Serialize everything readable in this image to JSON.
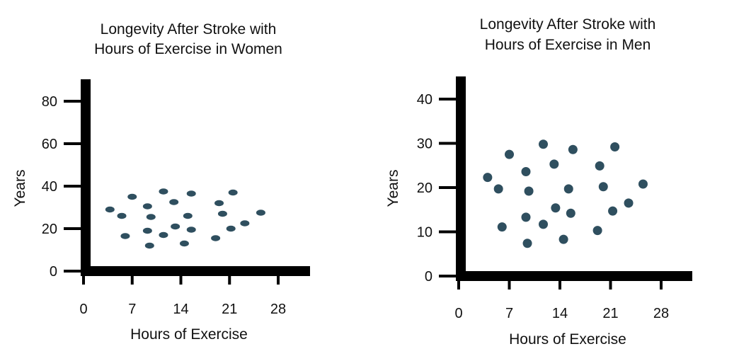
{
  "chart_data": [
    {
      "type": "scatter",
      "title_lines": [
        "Longevity After Stroke with",
        "Hours of Exercise in Women"
      ],
      "xlabel": "Hours of Exercise",
      "ylabel": "Years",
      "xlim": [
        0,
        32
      ],
      "ylim": [
        0,
        90
      ],
      "xticks": [
        0,
        7,
        14,
        21,
        28
      ],
      "yticks": [
        0,
        20,
        40,
        60,
        80
      ],
      "grid": false,
      "marker_color": "#2f4f5f",
      "marker_shape": "ellipse",
      "points": [
        {
          "x": 3.8,
          "y": 29
        },
        {
          "x": 5.5,
          "y": 26
        },
        {
          "x": 6.0,
          "y": 16.5
        },
        {
          "x": 7.0,
          "y": 35
        },
        {
          "x": 9.2,
          "y": 30.5
        },
        {
          "x": 9.2,
          "y": 19
        },
        {
          "x": 9.7,
          "y": 25.5
        },
        {
          "x": 9.5,
          "y": 12
        },
        {
          "x": 11.5,
          "y": 37.5
        },
        {
          "x": 11.5,
          "y": 17
        },
        {
          "x": 13.0,
          "y": 32.5
        },
        {
          "x": 13.2,
          "y": 21
        },
        {
          "x": 14.5,
          "y": 13
        },
        {
          "x": 15.0,
          "y": 26
        },
        {
          "x": 15.5,
          "y": 36.5
        },
        {
          "x": 15.5,
          "y": 19.5
        },
        {
          "x": 19.0,
          "y": 15.5
        },
        {
          "x": 19.5,
          "y": 32
        },
        {
          "x": 20.0,
          "y": 27
        },
        {
          "x": 21.2,
          "y": 20
        },
        {
          "x": 21.5,
          "y": 37
        },
        {
          "x": 23.2,
          "y": 22.5
        },
        {
          "x": 25.5,
          "y": 27.5
        }
      ]
    },
    {
      "type": "scatter",
      "title_lines": [
        "Longevity After Stroke with",
        "Hours of Exercise in Men"
      ],
      "xlabel": "Hours of Exercise",
      "ylabel": "Years",
      "xlim": [
        0,
        32
      ],
      "ylim": [
        0,
        45
      ],
      "xticks": [
        0,
        7,
        14,
        21,
        28
      ],
      "yticks": [
        0,
        10,
        20,
        30,
        40
      ],
      "grid": false,
      "marker_color": "#2f4f5f",
      "marker_shape": "circle",
      "points": [
        {
          "x": 4.0,
          "y": 22.3
        },
        {
          "x": 5.5,
          "y": 19.7
        },
        {
          "x": 6.0,
          "y": 11.1
        },
        {
          "x": 7.0,
          "y": 27.5
        },
        {
          "x": 9.3,
          "y": 23.6
        },
        {
          "x": 9.3,
          "y": 13.3
        },
        {
          "x": 9.5,
          "y": 7.4
        },
        {
          "x": 9.7,
          "y": 19.2
        },
        {
          "x": 11.7,
          "y": 29.8
        },
        {
          "x": 11.7,
          "y": 11.7
        },
        {
          "x": 13.2,
          "y": 25.3
        },
        {
          "x": 13.4,
          "y": 15.4
        },
        {
          "x": 14.5,
          "y": 8.3
        },
        {
          "x": 15.2,
          "y": 19.7
        },
        {
          "x": 15.5,
          "y": 14.2
        },
        {
          "x": 15.8,
          "y": 28.6
        },
        {
          "x": 19.2,
          "y": 10.3
        },
        {
          "x": 19.5,
          "y": 24.9
        },
        {
          "x": 20.0,
          "y": 20.2
        },
        {
          "x": 21.3,
          "y": 14.7
        },
        {
          "x": 21.6,
          "y": 29.2
        },
        {
          "x": 23.5,
          "y": 16.5
        },
        {
          "x": 25.5,
          "y": 20.8
        }
      ]
    }
  ]
}
